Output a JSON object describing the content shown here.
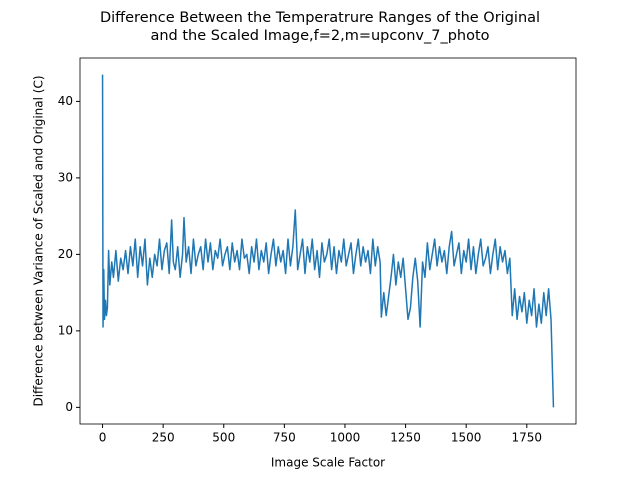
{
  "chart_data": {
    "type": "line",
    "title": [
      "Difference Between the Temperatrure Ranges of the Original",
      "and the Scaled Image,f=2,m=upconv_7_photo"
    ],
    "x_label": "Image Scale Factor",
    "y_label": "Difference between Variance of Scaled and Original (C)",
    "color": "#1f77b4",
    "x": [
      0,
      2,
      5,
      8,
      12,
      16,
      20,
      25,
      30,
      38,
      45,
      55,
      65,
      75,
      85,
      95,
      105,
      115,
      125,
      135,
      145,
      155,
      165,
      175,
      185,
      195,
      205,
      215,
      225,
      235,
      245,
      255,
      265,
      275,
      285,
      292,
      300,
      310,
      320,
      330,
      336,
      345,
      355,
      365,
      375,
      385,
      395,
      405,
      415,
      425,
      435,
      445,
      455,
      465,
      475,
      485,
      495,
      505,
      515,
      525,
      535,
      545,
      555,
      565,
      575,
      585,
      595,
      605,
      615,
      625,
      635,
      645,
      655,
      665,
      675,
      685,
      695,
      705,
      715,
      725,
      735,
      745,
      755,
      765,
      775,
      785,
      795,
      805,
      815,
      825,
      835,
      845,
      855,
      865,
      875,
      885,
      895,
      905,
      915,
      925,
      935,
      945,
      955,
      965,
      975,
      985,
      995,
      1005,
      1015,
      1025,
      1035,
      1045,
      1055,
      1065,
      1075,
      1085,
      1095,
      1105,
      1115,
      1125,
      1135,
      1145,
      1150,
      1160,
      1170,
      1180,
      1190,
      1200,
      1210,
      1220,
      1230,
      1240,
      1250,
      1260,
      1270,
      1280,
      1290,
      1300,
      1310,
      1320,
      1330,
      1340,
      1350,
      1360,
      1370,
      1380,
      1390,
      1400,
      1410,
      1420,
      1430,
      1440,
      1450,
      1460,
      1470,
      1480,
      1490,
      1500,
      1510,
      1520,
      1530,
      1540,
      1550,
      1560,
      1570,
      1580,
      1590,
      1600,
      1610,
      1620,
      1630,
      1640,
      1650,
      1660,
      1670,
      1680,
      1690,
      1700,
      1710,
      1720,
      1730,
      1740,
      1750,
      1760,
      1770,
      1780,
      1790,
      1800,
      1810,
      1820,
      1830,
      1840,
      1850,
      1860
    ],
    "values": [
      43.5,
      10.5,
      18,
      11.5,
      14,
      12,
      13,
      20.5,
      16,
      19,
      17,
      20.5,
      16.5,
      19.5,
      18,
      20.5,
      17.5,
      21,
      18.5,
      22,
      17,
      21,
      18.5,
      22,
      16,
      19.5,
      17,
      20,
      18.5,
      22,
      18,
      20.5,
      21.5,
      17.5,
      24.5,
      19,
      18,
      21,
      17,
      20,
      24.8,
      19,
      21,
      17.5,
      22,
      18.5,
      20,
      21,
      18,
      22,
      19,
      21.5,
      18,
      20.5,
      19.5,
      22,
      18.5,
      20,
      21,
      18,
      21.5,
      19,
      20.5,
      18,
      22,
      19.5,
      20,
      17.5,
      21,
      19,
      22,
      18,
      20.5,
      19,
      21.5,
      17.5,
      20,
      22,
      18.5,
      21,
      19,
      20.5,
      17.5,
      22,
      18.5,
      21,
      25.8,
      18,
      20,
      22,
      17.5,
      21,
      19,
      22,
      18,
      20.5,
      17,
      21.5,
      19,
      20,
      22,
      18,
      21,
      17.5,
      20.5,
      19,
      22,
      18.5,
      20,
      21.5,
      17.5,
      20,
      22,
      18.5,
      21,
      19,
      20.5,
      17.5,
      22,
      18.5,
      21,
      19,
      11.8,
      15,
      12,
      14.5,
      17,
      20,
      16,
      19,
      17,
      19.5,
      15.5,
      11.5,
      13,
      17,
      19.5,
      16.5,
      10.5,
      19,
      17,
      21.5,
      18,
      20,
      22,
      18.5,
      21,
      19,
      20.5,
      17.5,
      21,
      23,
      18.5,
      20,
      21.5,
      17.5,
      20.5,
      19,
      22,
      18,
      21,
      17.5,
      20,
      22,
      18.5,
      19.5,
      21,
      17.5,
      20,
      22,
      18,
      21,
      19,
      20.5,
      17.5,
      19.5,
      12,
      15.5,
      11.5,
      14.5,
      12.5,
      15,
      11,
      14,
      12,
      15.5,
      10.5,
      13.5,
      11,
      15,
      12,
      15.5,
      11.5,
      0
    ],
    "xlim": [
      -93,
      1953
    ],
    "xticks": [
      0,
      250,
      500,
      750,
      1000,
      1250,
      1500,
      1750
    ],
    "ylim": [
      -2.175,
      45.675
    ],
    "yticks": [
      0,
      10,
      20,
      30,
      40
    ]
  }
}
